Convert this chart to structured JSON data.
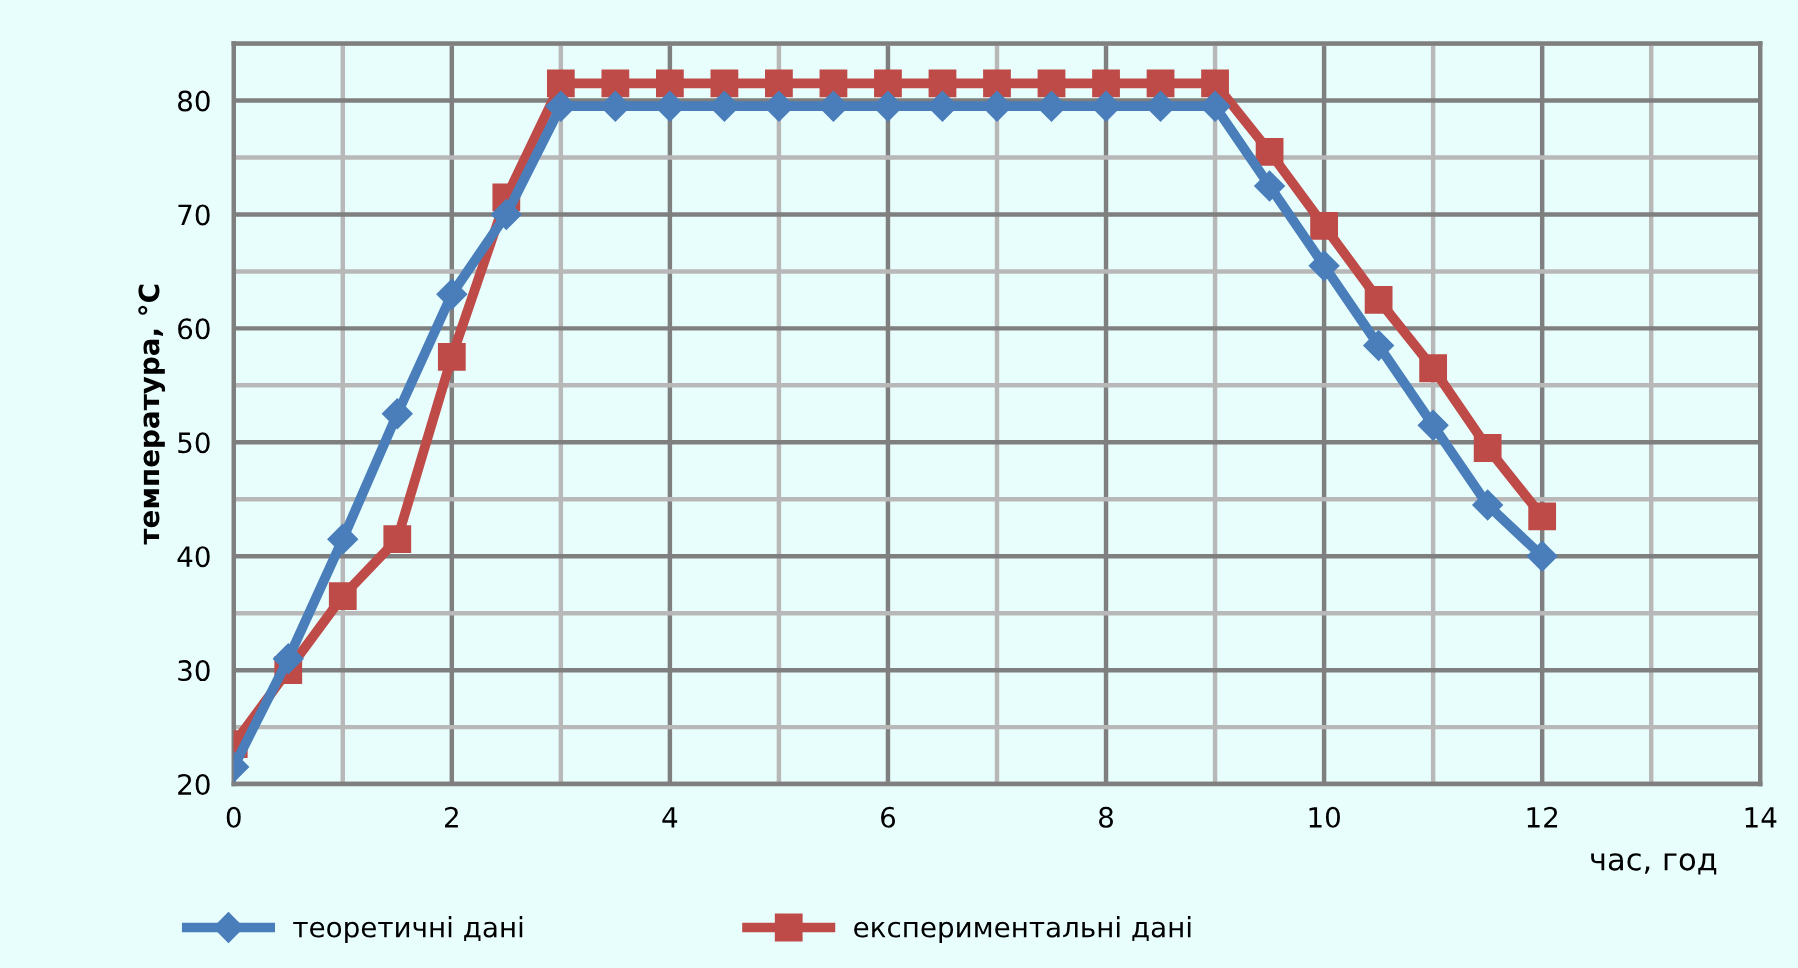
{
  "chart_data": {
    "type": "line",
    "xlabel": "час, год",
    "ylabel": "температура, °C",
    "x": [
      0,
      0.5,
      1,
      1.5,
      2,
      2.5,
      3,
      3.5,
      4,
      4.5,
      5,
      5.5,
      6,
      6.5,
      7,
      7.5,
      8,
      8.5,
      9,
      9.5,
      10,
      10.5,
      11,
      11.5,
      12
    ],
    "series": [
      {
        "name": "теоретичні дані",
        "color": "#4a7ebb",
        "marker": "diamond",
        "values": [
          21.5,
          31,
          41.5,
          52.5,
          63,
          70,
          79.5,
          79.5,
          79.5,
          79.5,
          79.5,
          79.5,
          79.5,
          79.5,
          79.5,
          79.5,
          79.5,
          79.5,
          79.5,
          72.5,
          65.5,
          58.5,
          51.5,
          44.5,
          40
        ]
      },
      {
        "name": "експериментальні дані",
        "color": "#be4b48",
        "marker": "square",
        "values": [
          23.5,
          30,
          36.5,
          41.5,
          57.5,
          71.5,
          81.5,
          81.5,
          81.5,
          81.5,
          81.5,
          81.5,
          81.5,
          81.5,
          81.5,
          81.5,
          81.5,
          81.5,
          81.5,
          75.5,
          69,
          62.5,
          56.5,
          49.5,
          43.5
        ]
      }
    ],
    "xlim": [
      0,
      14
    ],
    "xticks": [
      0,
      {
        "value": 1,
        "label": null
      },
      2,
      {
        "value": 3,
        "label": null
      },
      4,
      {
        "value": 5,
        "label": null
      },
      6,
      {
        "value": 7,
        "label": null
      },
      8,
      {
        "value": 9,
        "label": null
      },
      10,
      {
        "value": 11,
        "label": null
      },
      12,
      {
        "value": 13,
        "label": null
      },
      14
    ],
    "ylim": [
      20,
      85
    ],
    "yticks": [
      20,
      {
        "value": 25,
        "label": null
      },
      30,
      {
        "value": 35,
        "label": null
      },
      40,
      {
        "value": 45,
        "label": null
      },
      50,
      {
        "value": 55,
        "label": null
      },
      60,
      {
        "value": 65,
        "label": null
      },
      70,
      {
        "value": 75,
        "label": null
      },
      80,
      {
        "value": 85,
        "label": null
      }
    ],
    "grid": true,
    "legend": "bottom",
    "line_style": "solid"
  }
}
